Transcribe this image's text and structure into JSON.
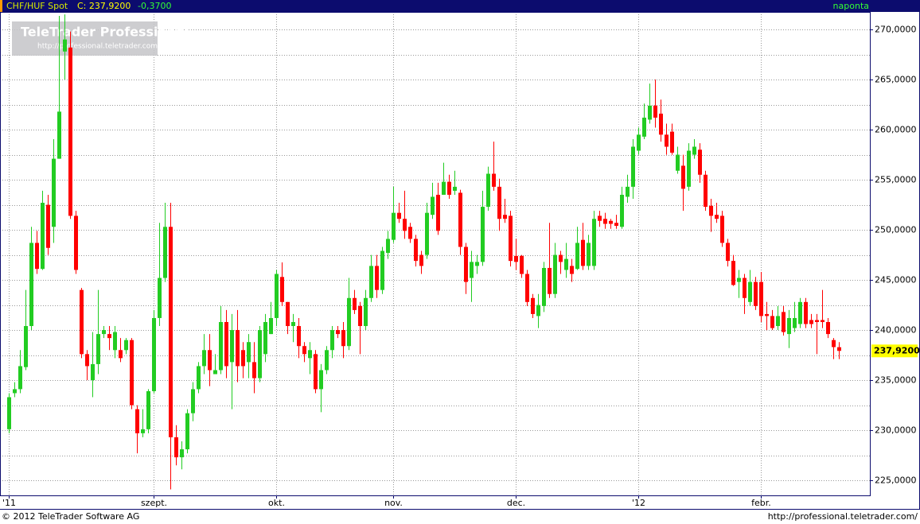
{
  "chart_data": {
    "type": "candlestick",
    "title": "CHF/HUF Spot",
    "header_close": "C: 237,9200",
    "header_change": "-0,3700",
    "frequency": "naponta",
    "watermark_title": "TeleTrader Professional",
    "watermark_url": "http://professional.teletrader.com/",
    "footer_left": "© 2012 TeleTrader Software AG",
    "footer_right": "http://professional.teletrader.com/",
    "up_color": "#22cc22",
    "down_color": "#ff0000",
    "grid": true,
    "ylim": [
      223.5,
      271.75
    ],
    "yticks": [
      {
        "value": 225,
        "label": "225,0000"
      },
      {
        "value": 230,
        "label": "230,0000"
      },
      {
        "value": 235,
        "label": "235,0000"
      },
      {
        "value": 240,
        "label": "240,0000"
      },
      {
        "value": 245,
        "label": "245,0000"
      },
      {
        "value": 250,
        "label": "250,0000"
      },
      {
        "value": 255,
        "label": "255,0000"
      },
      {
        "value": 260,
        "label": "260,0000"
      },
      {
        "value": 265,
        "label": "265,0000"
      },
      {
        "value": 270,
        "label": "270,0000"
      }
    ],
    "y_minor_grid": [
      227.5,
      232.5,
      237.5,
      242.5,
      247.5,
      252.5,
      257.5,
      262.5,
      267.5
    ],
    "last_price": {
      "value": 237.92,
      "label": "237,9200"
    },
    "categories": [
      "'11",
      null,
      null,
      null,
      null,
      null,
      null,
      null,
      null,
      null,
      null,
      null,
      null,
      null,
      null,
      null,
      null,
      null,
      null,
      null,
      null,
      null,
      null,
      null,
      null,
      null,
      "szept.",
      null,
      null,
      null,
      null,
      null,
      null,
      null,
      null,
      null,
      null,
      null,
      null,
      null,
      null,
      null,
      null,
      null,
      null,
      null,
      null,
      null,
      "okt.",
      null,
      null,
      null,
      null,
      null,
      null,
      null,
      null,
      null,
      null,
      null,
      null,
      null,
      null,
      null,
      null,
      null,
      null,
      null,
      null,
      "nov.",
      null,
      null,
      null,
      null,
      null,
      null,
      null,
      null,
      null,
      null,
      null,
      null,
      null,
      null,
      null,
      null,
      null,
      null,
      null,
      null,
      null,
      "dec.",
      null,
      null,
      null,
      null,
      null,
      null,
      null,
      null,
      null,
      null,
      null,
      null,
      null,
      null,
      null,
      null,
      null,
      null,
      null,
      null,
      null,
      "'12",
      null,
      null,
      null,
      null,
      null,
      null,
      null,
      null,
      null,
      null,
      null,
      null,
      null,
      null,
      null,
      null,
      null,
      null,
      null,
      null,
      null,
      "febr.",
      null,
      null,
      null,
      null,
      null,
      null,
      null,
      null,
      null,
      null,
      null,
      null,
      null,
      null
    ],
    "open": [
      230.1,
      233.7,
      234.1,
      236.3,
      240.4,
      248.7,
      246.1,
      252.5,
      250.3,
      257.1,
      267.8,
      268.2,
      251.4,
      244.0,
      237.6,
      235.0,
      236.6,
      239.6,
      239.6,
      238.0,
      238.0,
      238.0,
      239.0,
      232.1,
      229.7,
      230.1,
      233.9,
      241.2,
      245.2,
      250.3,
      229.3,
      227.3,
      228.1,
      231.7,
      234.1,
      236.4,
      238.0,
      235.6,
      236.0,
      240.8,
      236.8,
      240.0,
      238.0,
      236.8,
      236.8,
      235.2,
      237.6,
      239.6,
      241.2,
      245.3,
      242.8,
      240.4,
      240.4,
      238.4,
      237.2,
      237.6,
      234.1,
      236.0,
      238.0,
      240.0,
      240.0,
      238.4,
      243.2,
      242.4,
      240.4,
      243.2,
      246.4,
      244.0,
      247.7,
      249.0,
      251.7,
      251.1,
      250.3,
      249.1,
      247.5,
      247.5,
      251.5,
      253.5,
      253.5,
      254.8,
      253.9,
      253.7,
      248.3,
      245.2,
      246.4,
      246.8,
      252.3,
      255.6,
      254.3,
      251.5,
      251.4,
      247.4,
      247.4,
      245.6,
      243.2,
      241.4,
      242.4,
      246.2,
      243.6,
      247.5,
      246.0,
      246.4,
      246.1,
      249.0,
      246.4,
      246.4,
      251.4,
      251.1,
      250.9,
      250.7,
      250.3,
      253.3,
      254.3,
      257.9,
      259.3,
      261.0,
      262.4,
      261.6,
      259.5,
      259.8,
      255.9,
      256.4,
      254.3,
      257.5,
      258.0,
      255.5,
      252.4,
      251.5,
      251.4,
      248.7,
      246.9,
      244.8,
      245.2,
      242.8,
      244.8,
      244.8,
      241.6,
      241.4,
      240.4,
      241.8,
      239.6,
      240.2,
      240.6,
      242.8,
      241.0,
      241.0,
      241.0,
      240.8,
      239.0,
      238.29
    ],
    "high": [
      233.7,
      234.8,
      238.0,
      244.0,
      250.3,
      249.9,
      253.9,
      253.5,
      259.05,
      271.35,
      271.5,
      269.8,
      251.9,
      244.2,
      238.0,
      239.8,
      244.0,
      240.4,
      240.4,
      240.4,
      239.2,
      239.2,
      239.2,
      232.5,
      232.1,
      234.1,
      242.0,
      250.7,
      252.7,
      252.7,
      230.5,
      228.9,
      232.1,
      234.8,
      236.8,
      239.6,
      239.6,
      237.6,
      242.4,
      242.0,
      241.6,
      242.0,
      238.8,
      239.6,
      238.8,
      240.4,
      241.6,
      242.8,
      246.0,
      246.75,
      242.8,
      241.6,
      241.2,
      238.8,
      238.8,
      238.0,
      236.6,
      238.4,
      240.4,
      240.4,
      240.8,
      245.2,
      244.0,
      242.8,
      244.0,
      247.5,
      247.5,
      248.3,
      249.9,
      254.3,
      252.7,
      253.9,
      250.7,
      249.5,
      247.9,
      252.7,
      254.7,
      254.7,
      256.7,
      255.5,
      255.9,
      254.0,
      248.7,
      247.9,
      247.5,
      253.9,
      256.3,
      258.8,
      255.1,
      253.1,
      251.9,
      249.1,
      247.5,
      246.0,
      243.6,
      243.6,
      246.8,
      250.7,
      248.7,
      247.9,
      248.7,
      247.1,
      250.3,
      250.7,
      249.5,
      251.9,
      251.9,
      251.7,
      251.1,
      251.5,
      254.3,
      255.5,
      259.05,
      260.2,
      262.6,
      264.6,
      265.0,
      263.0,
      260.6,
      260.6,
      258.3,
      257.5,
      258.65,
      259.05,
      258.65,
      255.9,
      253.1,
      252.7,
      251.9,
      249.1,
      247.5,
      246.0,
      245.6,
      246.0,
      245.3,
      245.8,
      242.8,
      242.0,
      242.4,
      242.4,
      242.0,
      242.8,
      243.2,
      243.2,
      241.6,
      241.6,
      244.0,
      241.2,
      239.2,
      238.8
    ],
    "low": [
      229.7,
      233.3,
      233.7,
      236.0,
      240.0,
      245.6,
      246.0,
      247.5,
      248.7,
      257.1,
      265.0,
      251.1,
      245.6,
      237.2,
      235.0,
      233.3,
      235.6,
      239.2,
      238.0,
      237.2,
      236.8,
      237.6,
      232.1,
      227.7,
      229.3,
      229.7,
      233.7,
      240.4,
      244.8,
      224.1,
      226.5,
      226.1,
      227.7,
      230.9,
      233.7,
      235.6,
      234.4,
      235.6,
      235.6,
      235.2,
      232.1,
      234.8,
      235.2,
      235.2,
      233.7,
      234.8,
      236.8,
      239.6,
      240.4,
      242.4,
      239.6,
      238.8,
      237.2,
      236.8,
      235.6,
      233.7,
      231.8,
      235.6,
      237.2,
      239.2,
      237.2,
      238.0,
      241.6,
      237.6,
      240.0,
      242.8,
      243.2,
      243.6,
      247.1,
      248.7,
      250.7,
      249.1,
      248.7,
      246.35,
      245.6,
      247.1,
      251.1,
      249.5,
      253.5,
      253.1,
      253.5,
      247.5,
      243.6,
      242.8,
      245.6,
      246.4,
      251.9,
      253.9,
      249.9,
      250.7,
      246.35,
      246.0,
      245.2,
      242.4,
      241.2,
      240.2,
      241.8,
      243.2,
      243.2,
      245.6,
      245.2,
      244.8,
      246.0,
      246.0,
      246.0,
      246.0,
      250.3,
      250.1,
      250.1,
      250.1,
      250.1,
      252.7,
      253.1,
      257.5,
      259.05,
      260.6,
      260.2,
      258.8,
      257.5,
      257.5,
      255.6,
      251.9,
      253.9,
      257.1,
      254.7,
      251.9,
      249.8,
      250.7,
      248.3,
      246.35,
      244.4,
      243.2,
      241.6,
      242.4,
      242.0,
      240.8,
      240.0,
      240.0,
      240.0,
      239.45,
      238.2,
      239.8,
      240.2,
      240.2,
      240.2,
      237.6,
      240.2,
      239.2,
      237.1,
      237.1
    ],
    "close": [
      233.3,
      234.1,
      236.4,
      240.4,
      248.7,
      246.1,
      252.7,
      248.2,
      257.1,
      261.8,
      269.0,
      251.4,
      246.0,
      237.6,
      236.4,
      236.6,
      239.6,
      240.0,
      239.2,
      239.8,
      237.2,
      239.0,
      232.5,
      229.7,
      230.1,
      233.9,
      241.2,
      245.2,
      250.3,
      229.3,
      227.3,
      228.1,
      231.7,
      234.1,
      236.4,
      238.0,
      236.0,
      236.0,
      240.8,
      236.4,
      240.0,
      236.4,
      236.4,
      238.8,
      235.2,
      240.0,
      240.8,
      241.2,
      245.6,
      242.8,
      240.4,
      240.8,
      238.4,
      237.6,
      238.0,
      234.1,
      236.0,
      238.0,
      240.0,
      239.6,
      238.4,
      243.2,
      242.0,
      240.4,
      243.2,
      246.4,
      244.0,
      247.9,
      249.1,
      251.7,
      251.1,
      249.9,
      249.1,
      246.9,
      246.4,
      251.7,
      253.3,
      249.9,
      254.8,
      253.5,
      254.3,
      248.3,
      244.8,
      246.8,
      246.8,
      252.3,
      255.6,
      254.3,
      251.1,
      251.1,
      246.9,
      246.8,
      245.6,
      242.8,
      241.6,
      242.5,
      246.2,
      243.6,
      247.5,
      246.8,
      247.1,
      245.6,
      248.7,
      246.4,
      248.7,
      251.1,
      250.9,
      250.6,
      250.6,
      250.4,
      253.5,
      254.3,
      258.3,
      259.5,
      261.2,
      262.4,
      261.2,
      259.5,
      258.3,
      257.7,
      257.5,
      254.1,
      257.9,
      258.3,
      255.5,
      252.3,
      251.4,
      251.1,
      248.7,
      246.9,
      244.5,
      245.2,
      243.2,
      244.8,
      242.4,
      241.4,
      241.4,
      240.2,
      241.4,
      239.8,
      241.2,
      241.2,
      242.8,
      240.6,
      240.6,
      240.8,
      240.8,
      239.6,
      238.3,
      237.92
    ]
  }
}
